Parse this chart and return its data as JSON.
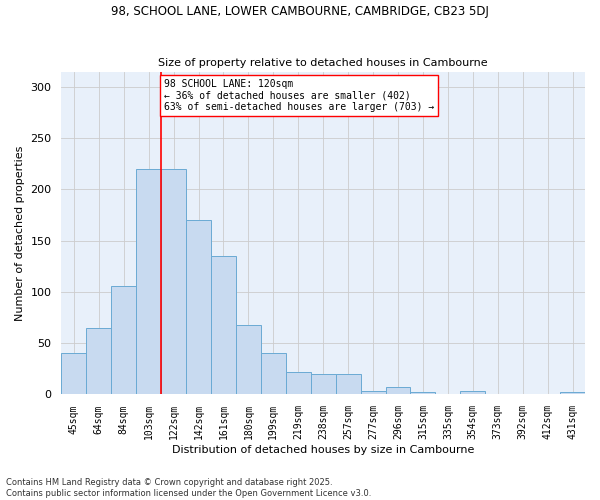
{
  "title_line1": "98, SCHOOL LANE, LOWER CAMBOURNE, CAMBRIDGE, CB23 5DJ",
  "title_line2": "Size of property relative to detached houses in Cambourne",
  "xlabel": "Distribution of detached houses by size in Cambourne",
  "ylabel": "Number of detached properties",
  "categories": [
    "45sqm",
    "64sqm",
    "84sqm",
    "103sqm",
    "122sqm",
    "142sqm",
    "161sqm",
    "180sqm",
    "199sqm",
    "219sqm",
    "238sqm",
    "257sqm",
    "277sqm",
    "296sqm",
    "315sqm",
    "335sqm",
    "354sqm",
    "373sqm",
    "392sqm",
    "412sqm",
    "431sqm"
  ],
  "values": [
    40,
    65,
    106,
    220,
    220,
    170,
    135,
    68,
    40,
    22,
    20,
    20,
    3,
    7,
    2,
    0,
    3,
    0,
    0,
    0,
    2
  ],
  "bar_color": "#c8daf0",
  "bar_edge_color": "#6aaad4",
  "grid_color": "#cccccc",
  "bg_color": "#e8f0fa",
  "vline_color": "red",
  "vline_x_index": 3.5,
  "annotation_text": "98 SCHOOL LANE: 120sqm\n← 36% of detached houses are smaller (402)\n63% of semi-detached houses are larger (703) →",
  "annotation_box_color": "white",
  "annotation_box_edge": "red",
  "footer_line1": "Contains HM Land Registry data © Crown copyright and database right 2025.",
  "footer_line2": "Contains public sector information licensed under the Open Government Licence v3.0.",
  "ylim": [
    0,
    315
  ],
  "yticks": [
    0,
    50,
    100,
    150,
    200,
    250,
    300
  ]
}
